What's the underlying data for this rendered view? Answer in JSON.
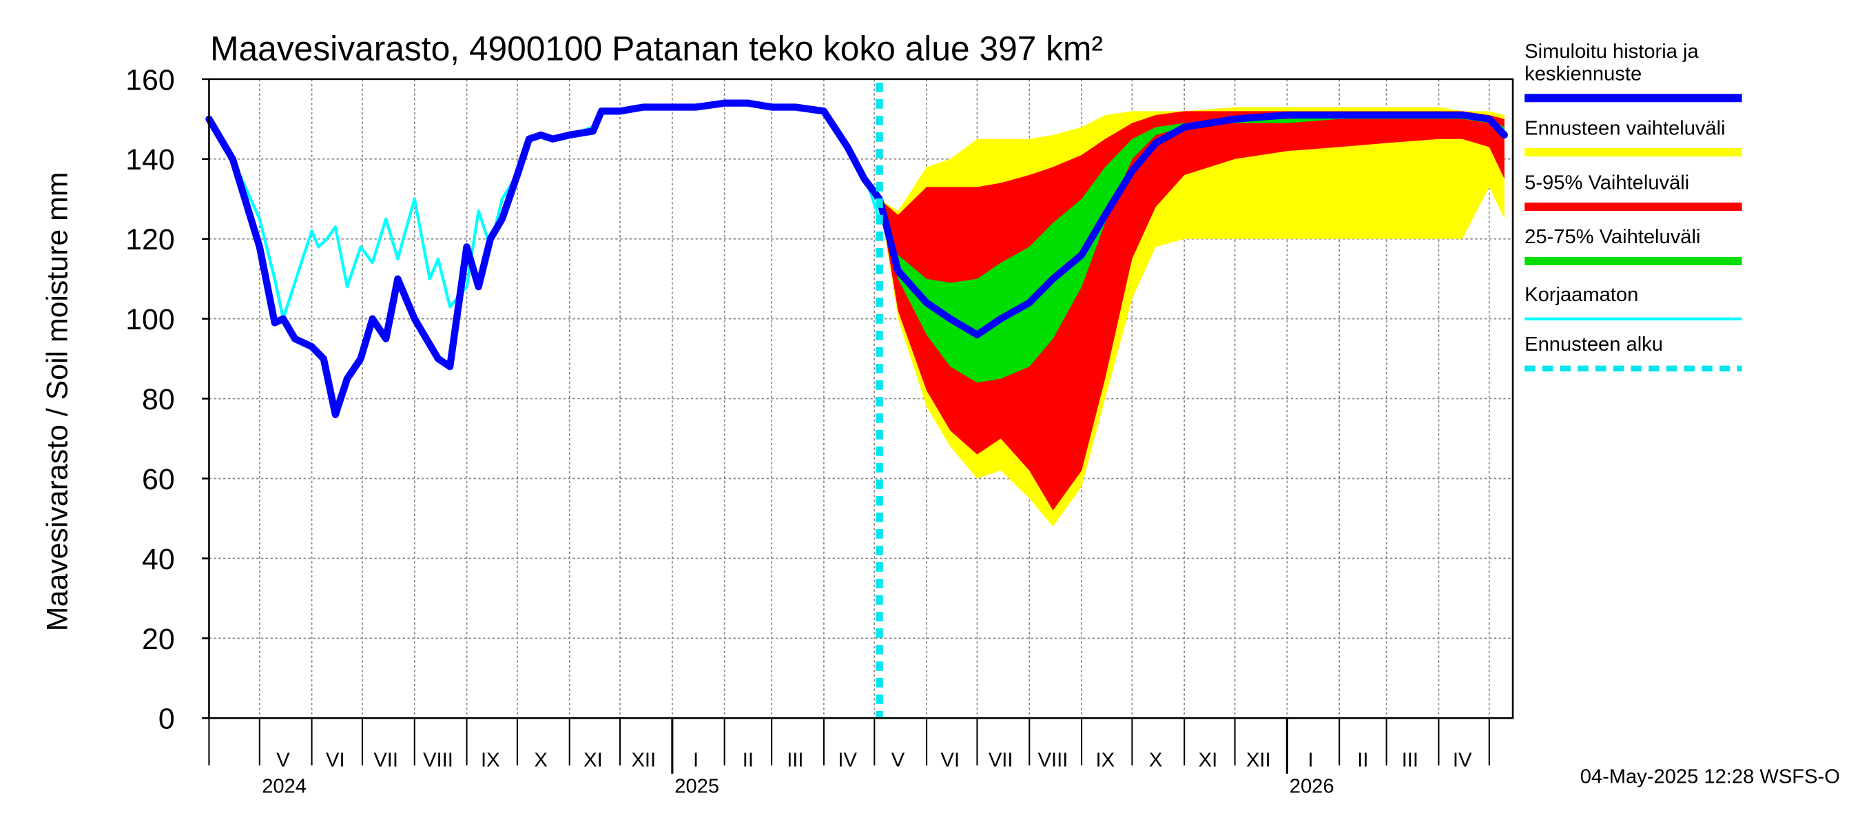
{
  "chart_data": {
    "type": "area",
    "title": "Maavesivarasto, 4900100 Patanan teko koko alue 397 km²",
    "ylabel": "Maavesivarasto / Soil moisture   mm",
    "ylim": [
      0,
      160
    ],
    "yticks": [
      0,
      20,
      40,
      60,
      80,
      100,
      120,
      140,
      160
    ],
    "xlim": [
      "2024-04-01",
      "2026-05-15"
    ],
    "grid": true,
    "forecast_start": "2025-05-04",
    "x_month_labels": [
      {
        "label": "V",
        "date": "2024-05-15"
      },
      {
        "label": "VI",
        "date": "2024-06-15"
      },
      {
        "label": "VII",
        "date": "2024-07-15"
      },
      {
        "label": "VIII",
        "date": "2024-08-15"
      },
      {
        "label": "IX",
        "date": "2024-09-15"
      },
      {
        "label": "X",
        "date": "2024-10-15"
      },
      {
        "label": "XI",
        "date": "2024-11-15"
      },
      {
        "label": "XII",
        "date": "2024-12-15"
      },
      {
        "label": "I",
        "date": "2025-01-15"
      },
      {
        "label": "II",
        "date": "2025-02-15"
      },
      {
        "label": "III",
        "date": "2025-03-15"
      },
      {
        "label": "IV",
        "date": "2025-04-15"
      },
      {
        "label": "V",
        "date": "2025-05-15"
      },
      {
        "label": "VI",
        "date": "2025-06-15"
      },
      {
        "label": "VII",
        "date": "2025-07-15"
      },
      {
        "label": "VIII",
        "date": "2025-08-15"
      },
      {
        "label": "IX",
        "date": "2025-09-15"
      },
      {
        "label": "X",
        "date": "2025-10-15"
      },
      {
        "label": "XI",
        "date": "2025-11-15"
      },
      {
        "label": "XII",
        "date": "2025-12-15"
      },
      {
        "label": "I",
        "date": "2026-01-15"
      },
      {
        "label": "II",
        "date": "2026-02-15"
      },
      {
        "label": "III",
        "date": "2026-03-15"
      },
      {
        "label": "IV",
        "date": "2026-04-15"
      }
    ],
    "x_year_labels": [
      {
        "label": "2024",
        "date": "2024-05-01"
      },
      {
        "label": "2025",
        "date": "2025-01-01"
      },
      {
        "label": "2026",
        "date": "2026-01-01"
      }
    ],
    "legend_placement": "right",
    "series": [
      {
        "name": "Ennusteen vaihteluväli",
        "kind": "band",
        "color": "#ffff00",
        "x": [
          "2025-05-04",
          "2025-05-15",
          "2025-06-01",
          "2025-06-15",
          "2025-07-01",
          "2025-07-15",
          "2025-08-01",
          "2025-08-15",
          "2025-09-01",
          "2025-09-15",
          "2025-10-01",
          "2025-10-15",
          "2025-11-01",
          "2025-12-01",
          "2026-01-01",
          "2026-02-01",
          "2026-03-01",
          "2026-04-01",
          "2026-04-15",
          "2026-05-01",
          "2026-05-10"
        ],
        "low": [
          130,
          100,
          78,
          68,
          60,
          62,
          55,
          48,
          58,
          80,
          105,
          118,
          120,
          120,
          120,
          120,
          120,
          120,
          120,
          133,
          125
        ],
        "high": [
          130,
          127,
          138,
          140,
          145,
          145,
          145,
          146,
          148,
          151,
          152,
          152,
          152,
          153,
          153,
          153,
          153,
          153,
          152,
          152,
          151
        ]
      },
      {
        "name": "5-95% Vaihteluväli",
        "kind": "band",
        "color": "#ff0000",
        "x": [
          "2025-05-04",
          "2025-05-15",
          "2025-06-01",
          "2025-06-15",
          "2025-07-01",
          "2025-07-15",
          "2025-08-01",
          "2025-08-15",
          "2025-09-01",
          "2025-09-15",
          "2025-10-01",
          "2025-10-15",
          "2025-11-01",
          "2025-12-01",
          "2026-01-01",
          "2026-02-01",
          "2026-03-01",
          "2026-04-01",
          "2026-04-15",
          "2026-05-01",
          "2026-05-10"
        ],
        "low": [
          130,
          102,
          82,
          72,
          66,
          70,
          62,
          52,
          62,
          85,
          115,
          128,
          136,
          140,
          142,
          143,
          144,
          145,
          145,
          143,
          135
        ],
        "high": [
          130,
          126,
          133,
          133,
          133,
          134,
          136,
          138,
          141,
          145,
          149,
          151,
          152,
          152,
          152,
          152,
          152,
          152,
          152,
          151,
          150
        ]
      },
      {
        "name": "25-75% Vaihteluväli",
        "kind": "band",
        "color": "#00dd00",
        "x": [
          "2025-05-04",
          "2025-05-15",
          "2025-06-01",
          "2025-06-15",
          "2025-07-01",
          "2025-07-15",
          "2025-08-01",
          "2025-08-15",
          "2025-09-01",
          "2025-09-15",
          "2025-10-01",
          "2025-10-15",
          "2025-11-01",
          "2025-12-01",
          "2026-01-01",
          "2026-02-01",
          "2026-03-01",
          "2026-04-01",
          "2026-04-15",
          "2026-05-01",
          "2026-05-10"
        ],
        "low": [
          128,
          110,
          96,
          88,
          84,
          85,
          88,
          95,
          108,
          124,
          140,
          146,
          148,
          149,
          149,
          150,
          150,
          150,
          150,
          149,
          146
        ],
        "high": [
          128,
          116,
          110,
          109,
          110,
          114,
          118,
          124,
          130,
          138,
          145,
          148,
          149,
          150,
          150,
          151,
          151,
          151,
          151,
          150,
          148
        ]
      },
      {
        "name": "Korjaamaton",
        "kind": "line",
        "color": "#00ffff",
        "x": [
          "2024-04-01",
          "2024-04-15",
          "2024-05-01",
          "2024-05-10",
          "2024-05-15",
          "2024-05-25",
          "2024-06-01",
          "2024-06-05",
          "2024-06-10",
          "2024-06-15",
          "2024-06-22",
          "2024-06-30",
          "2024-07-07",
          "2024-07-15",
          "2024-07-22",
          "2024-08-01",
          "2024-08-10",
          "2024-08-15",
          "2024-08-22",
          "2024-09-01",
          "2024-09-08",
          "2024-09-15",
          "2024-09-22",
          "2024-10-01",
          "2024-10-08",
          "2024-10-15",
          "2024-10-22",
          "2024-11-01",
          "2024-11-15",
          "2024-11-20",
          "2024-12-01",
          "2024-12-15",
          "2025-01-01",
          "2025-01-15",
          "2025-02-01",
          "2025-02-15",
          "2025-03-01",
          "2025-03-15",
          "2025-04-01",
          "2025-04-15",
          "2025-04-25",
          "2025-05-04"
        ],
        "values": [
          150,
          140,
          125,
          110,
          100,
          113,
          122,
          118,
          120,
          123,
          108,
          118,
          114,
          125,
          115,
          130,
          110,
          115,
          103,
          108,
          127,
          118,
          130,
          136,
          145,
          146,
          145,
          146,
          148,
          152,
          152,
          153,
          153,
          153,
          154,
          154,
          153,
          153,
          152,
          143,
          136,
          125
        ]
      },
      {
        "name": "Simuloitu historia ja keskiennuste",
        "kind": "line",
        "color": "#0000ff",
        "x": [
          "2024-04-01",
          "2024-04-15",
          "2024-05-01",
          "2024-05-10",
          "2024-05-15",
          "2024-05-22",
          "2024-06-01",
          "2024-06-08",
          "2024-06-15",
          "2024-06-22",
          "2024-06-30",
          "2024-07-07",
          "2024-07-15",
          "2024-07-22",
          "2024-08-01",
          "2024-08-08",
          "2024-08-15",
          "2024-08-22",
          "2024-09-01",
          "2024-09-08",
          "2024-09-15",
          "2024-09-22",
          "2024-10-01",
          "2024-10-08",
          "2024-10-15",
          "2024-10-22",
          "2024-11-01",
          "2024-11-15",
          "2024-11-20",
          "2024-12-01",
          "2024-12-15",
          "2025-01-01",
          "2025-01-15",
          "2025-02-01",
          "2025-02-15",
          "2025-03-01",
          "2025-03-15",
          "2025-04-01",
          "2025-04-15",
          "2025-04-25",
          "2025-05-04",
          "2025-05-15",
          "2025-06-01",
          "2025-06-15",
          "2025-07-01",
          "2025-07-15",
          "2025-08-01",
          "2025-08-15",
          "2025-09-01",
          "2025-09-15",
          "2025-10-01",
          "2025-10-15",
          "2025-11-01",
          "2025-12-01",
          "2026-01-01",
          "2026-02-01",
          "2026-03-01",
          "2026-04-01",
          "2026-04-15",
          "2026-05-01",
          "2026-05-10"
        ],
        "values": [
          150,
          140,
          118,
          99,
          100,
          95,
          93,
          90,
          76,
          85,
          90,
          100,
          95,
          110,
          100,
          95,
          90,
          88,
          118,
          108,
          120,
          125,
          136,
          145,
          146,
          145,
          146,
          147,
          152,
          152,
          153,
          153,
          153,
          154,
          154,
          153,
          153,
          152,
          143,
          135,
          130,
          112,
          104,
          100,
          96,
          100,
          104,
          110,
          116,
          126,
          137,
          144,
          148,
          150,
          151,
          151,
          151,
          151,
          151,
          150,
          146
        ]
      }
    ],
    "legend": [
      {
        "label": "Simuloitu historia ja keskiennuste",
        "color": "#0000ff",
        "style": "thick"
      },
      {
        "label": "Ennusteen vaihteluväli",
        "color": "#ffff00",
        "style": "thick"
      },
      {
        "label": "5-95% Vaihteluväli",
        "color": "#ff0000",
        "style": "thick"
      },
      {
        "label": "25-75% Vaihteluväli",
        "color": "#00dd00",
        "style": "thick"
      },
      {
        "label": "Korjaamaton",
        "color": "#00ffff",
        "style": "thin"
      },
      {
        "label": "Ennusteen alku",
        "color": "#00e5ee",
        "style": "dashed"
      }
    ],
    "timestamp": "04-May-2025 12:28 WSFS-O"
  }
}
